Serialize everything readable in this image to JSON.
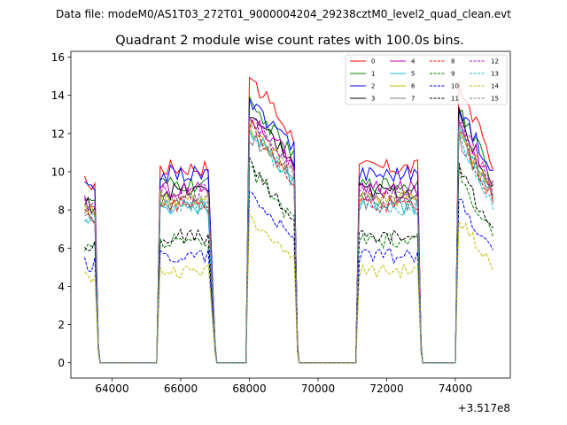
{
  "header": {
    "data_file": "Data file: modeM0/AS1T03_272T01_9000004204_29238cztM0_level2_quad_clean.evt"
  },
  "chart_data": {
    "type": "line",
    "title": "Quadrant 2 module wise count rates with 100.0s bins.",
    "xlabel": "",
    "ylabel": "",
    "x_offset_label": "+3.517e8",
    "xlim": [
      62800,
      75600
    ],
    "ylim": [
      -0.8,
      16.3
    ],
    "x_ticks": [
      64000,
      66000,
      68000,
      70000,
      72000,
      74000
    ],
    "x_tick_labels": [
      "64000",
      "66000",
      "68000",
      "70000",
      "72000",
      "74000"
    ],
    "y_ticks": [
      0,
      2,
      4,
      6,
      8,
      10,
      12,
      14,
      16
    ],
    "y_tick_labels": [
      "0",
      "2",
      "4",
      "6",
      "8",
      "10",
      "12",
      "14",
      "16"
    ],
    "legend_position": "top-right",
    "series": [
      {
        "name": "0",
        "color": "#ff0000",
        "dash": "solid",
        "base": 10.2,
        "noise": 0.45,
        "peak": 15.0
      },
      {
        "name": "1",
        "color": "#008000",
        "dash": "solid",
        "base": 9.3,
        "noise": 0.45,
        "peak": 13.8
      },
      {
        "name": "2",
        "color": "#0000ff",
        "dash": "solid",
        "base": 9.9,
        "noise": 0.45,
        "peak": 13.5
      },
      {
        "name": "3",
        "color": "#000000",
        "dash": "solid",
        "base": 9.0,
        "noise": 0.45,
        "peak": 13.2
      },
      {
        "name": "4",
        "color": "#bf00bf",
        "dash": "solid",
        "base": 9.1,
        "noise": 0.45,
        "peak": 13.0
      },
      {
        "name": "5",
        "color": "#17becf",
        "dash": "solid",
        "base": 8.2,
        "noise": 0.45,
        "peak": 12.2
      },
      {
        "name": "6",
        "color": "#bfbf00",
        "dash": "solid",
        "base": 8.6,
        "noise": 0.45,
        "peak": 12.4
      },
      {
        "name": "7",
        "color": "#7f7f7f",
        "dash": "solid",
        "base": 8.4,
        "noise": 0.45,
        "peak": 12.0
      },
      {
        "name": "8",
        "color": "#ff0000",
        "dash": "dashed",
        "base": 8.3,
        "noise": 0.45,
        "peak": 12.5
      },
      {
        "name": "9",
        "color": "#008000",
        "dash": "dashed",
        "base": 6.4,
        "noise": 0.4,
        "peak": 10.2
      },
      {
        "name": "10",
        "color": "#0000ff",
        "dash": "dashed",
        "base": 5.6,
        "noise": 0.4,
        "peak": 8.8
      },
      {
        "name": "11",
        "color": "#000000",
        "dash": "dashed",
        "base": 6.6,
        "noise": 0.4,
        "peak": 10.4
      },
      {
        "name": "12",
        "color": "#bf00bf",
        "dash": "dashed",
        "base": 8.9,
        "noise": 0.45,
        "peak": 12.8
      },
      {
        "name": "13",
        "color": "#17becf",
        "dash": "dashed",
        "base": 8.1,
        "noise": 0.45,
        "peak": 12.1
      },
      {
        "name": "14",
        "color": "#bfbf00",
        "dash": "dashed",
        "base": 4.8,
        "noise": 0.35,
        "peak": 7.7
      },
      {
        "name": "15",
        "color": "#7f7f7f",
        "dash": "dashed",
        "base": 8.5,
        "noise": 0.45,
        "peak": 12.6
      }
    ],
    "segments": [
      {
        "start": 63200,
        "end": 63500,
        "drop_end": 63600
      },
      {
        "start": 65400,
        "end": 66800,
        "drop_end": 67000
      },
      {
        "start": 68000,
        "end": 69300,
        "drop_end": 69400
      },
      {
        "start": 71200,
        "end": 72900,
        "drop_end": 73000
      },
      {
        "start": 74100,
        "end": 75100,
        "drop_end": 75100
      }
    ],
    "gap_value": 0
  }
}
